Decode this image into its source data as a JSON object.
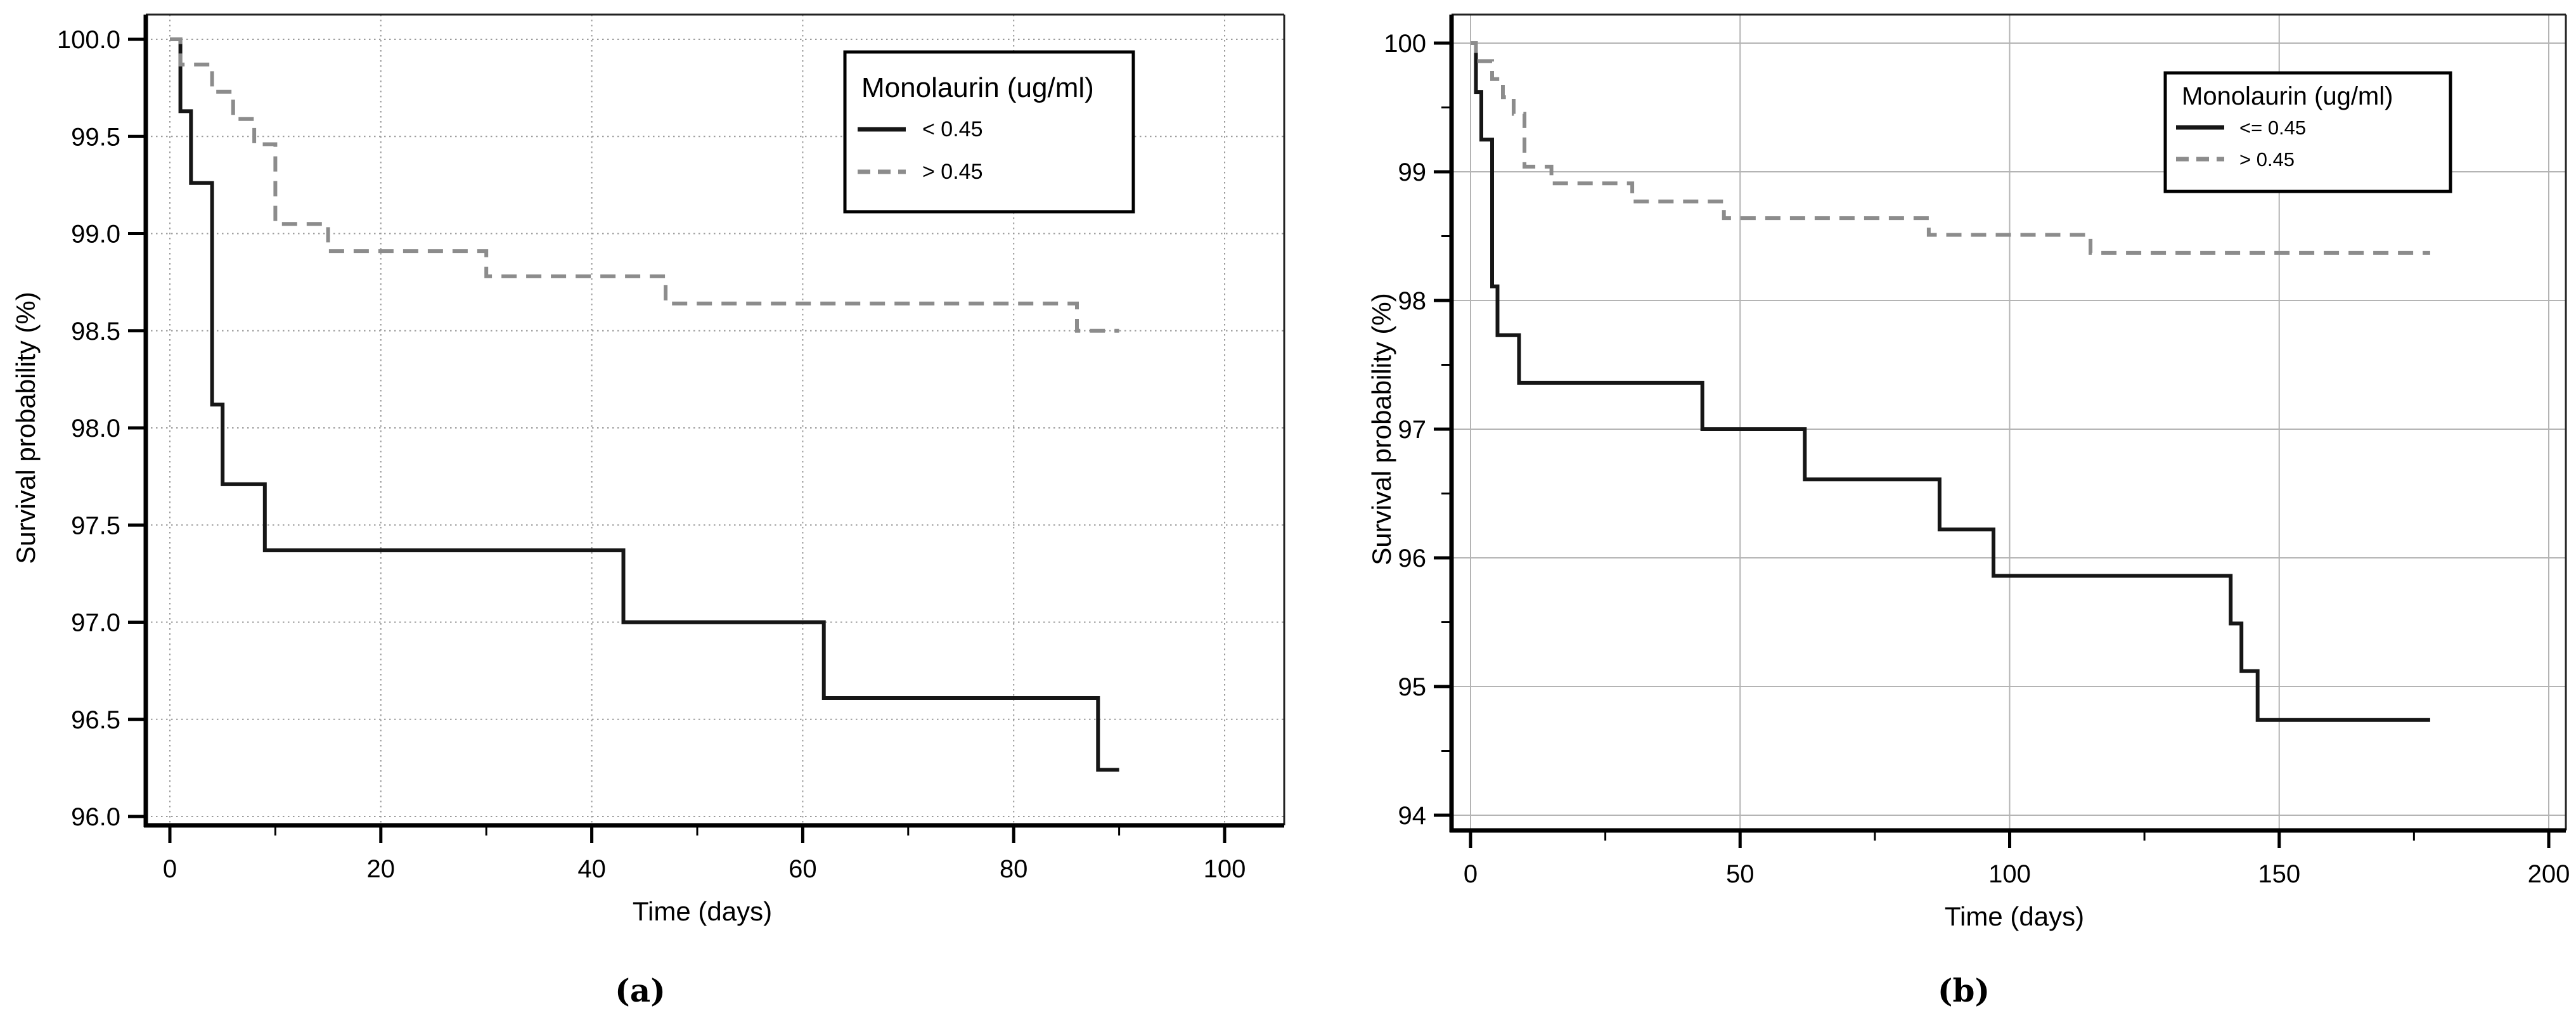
{
  "figure": {
    "type": "kaplan-meier-survival-figure",
    "panel_count": 2
  },
  "chart_data": [
    {
      "panel": "a",
      "caption": "(a)",
      "type": "line",
      "subtype": "step-survival-curve",
      "xlabel": "Time (days)",
      "ylabel": "Survival probability (%)",
      "xlim": [
        0,
        100
      ],
      "ylim": [
        96.0,
        100.0
      ],
      "x_major_ticks": [
        0,
        20,
        40,
        60,
        80,
        100
      ],
      "x_minor_ticks": [
        10,
        30,
        50,
        70,
        90
      ],
      "y_major_ticks": [
        100.0,
        99.5,
        99.0,
        98.5,
        98.0,
        97.5,
        97.0,
        96.5,
        96.0
      ],
      "y_minor_ticks": [],
      "y_tick_decimals": 1,
      "grid": "dotted",
      "legend": {
        "title": "Monolaurin (ug/ml)",
        "position": "top-right",
        "entries": [
          {
            "label": "<  0.45",
            "line_style": "solid",
            "color": "#161616"
          },
          {
            "label": ">  0.45",
            "line_style": "dashed",
            "color": "#8c8c8c"
          }
        ]
      },
      "series": [
        {
          "name": "< 0.45",
          "line_style": "solid",
          "color": "#161616",
          "end_x": 90,
          "points": [
            [
              0,
              100
            ],
            [
              1,
              99.63
            ],
            [
              2,
              99.26
            ],
            [
              4,
              98.12
            ],
            [
              5,
              97.71
            ],
            [
              9,
              97.37
            ],
            [
              43,
              97.0
            ],
            [
              62,
              96.61
            ],
            [
              88,
              96.24
            ]
          ]
        },
        {
          "name": "> 0.45",
          "line_style": "dashed",
          "color": "#8c8c8c",
          "end_x": 90,
          "points": [
            [
              0,
              100
            ],
            [
              1,
              99.87
            ],
            [
              4,
              99.73
            ],
            [
              6,
              99.59
            ],
            [
              8,
              99.46
            ],
            [
              10,
              99.05
            ],
            [
              15,
              98.91
            ],
            [
              30,
              98.78
            ],
            [
              47,
              98.64
            ],
            [
              86,
              98.5
            ]
          ]
        }
      ]
    },
    {
      "panel": "b",
      "caption": "(b)",
      "type": "line",
      "subtype": "step-survival-curve",
      "xlabel": "Time (days)",
      "ylabel": "Survival probability (%)",
      "xlim": [
        0,
        200
      ],
      "ylim": [
        94,
        100
      ],
      "x_major_ticks": [
        0,
        50,
        100,
        150,
        200
      ],
      "x_minor_ticks": [
        25,
        75,
        125,
        175
      ],
      "y_major_ticks": [
        100,
        99,
        98,
        97,
        96,
        95,
        94
      ],
      "y_minor_ticks": [
        99.5,
        98.5,
        97.5,
        96.5,
        95.5,
        94.5
      ],
      "y_tick_decimals": 0,
      "grid": "solid",
      "legend": {
        "title": "Monolaurin (ug/ml)",
        "position": "top-right",
        "entries": [
          {
            "label": "<=  0.45",
            "line_style": "solid",
            "color": "#161616"
          },
          {
            "label": ">  0.45",
            "line_style": "dashed",
            "color": "#8c8c8c"
          }
        ]
      },
      "series": [
        {
          "name": "<= 0.45",
          "line_style": "solid",
          "color": "#161616",
          "end_x": 178,
          "points": [
            [
              0,
              100
            ],
            [
              1,
              99.62
            ],
            [
              2,
              99.25
            ],
            [
              4,
              98.11
            ],
            [
              5,
              97.73
            ],
            [
              9,
              97.36
            ],
            [
              43,
              97.0
            ],
            [
              62,
              96.61
            ],
            [
              87,
              96.22
            ],
            [
              97,
              95.86
            ],
            [
              141,
              95.49
            ],
            [
              143,
              95.12
            ],
            [
              146,
              94.74
            ]
          ]
        },
        {
          "name": "> 0.45",
          "line_style": "dashed",
          "color": "#8c8c8c",
          "end_x": 178,
          "points": [
            [
              0,
              100
            ],
            [
              1,
              99.86
            ],
            [
              4,
              99.72
            ],
            [
              6,
              99.58
            ],
            [
              8,
              99.45
            ],
            [
              10,
              99.04
            ],
            [
              15,
              98.91
            ],
            [
              30,
              98.77
            ],
            [
              47,
              98.64
            ],
            [
              85,
              98.51
            ],
            [
              115,
              98.37
            ]
          ]
        }
      ]
    }
  ]
}
